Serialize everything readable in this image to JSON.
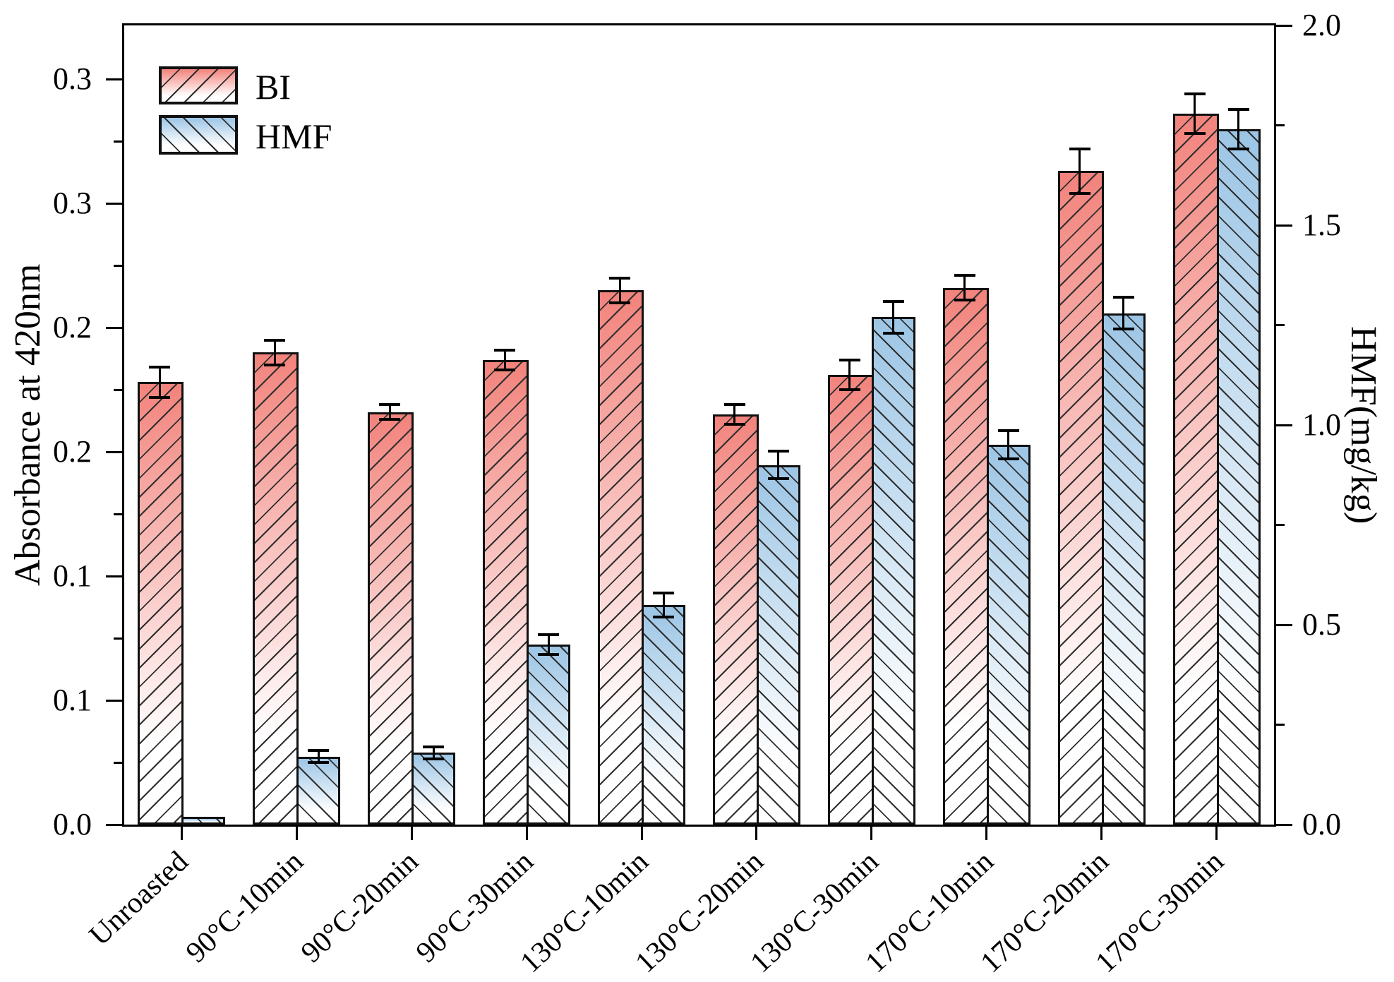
{
  "colors": {
    "bi_fill": "#f2837c",
    "hmf_fill": "#9cc5e5",
    "hatch": "#2e2e2e",
    "axis": "#000000",
    "background": "#ffffff"
  },
  "legend": {
    "bi_label": "BI",
    "hmf_label": "HMF"
  },
  "chart_data": {
    "type": "bar",
    "title": "",
    "categories": [
      "Unroasted",
      "90°C-10min",
      "90°C-20min",
      "90°C-30min",
      "130°C-10min",
      "130°C-20min",
      "130°C-30min",
      "170°C-10min",
      "170°C-20min",
      "170°C-30min"
    ],
    "series": [
      {
        "name": "BI",
        "axis": "left",
        "color": "#f2837c",
        "hatch": "/",
        "values": [
          0.178,
          0.19,
          0.166,
          0.187,
          0.215,
          0.165,
          0.181,
          0.216,
          0.263,
          0.286
        ],
        "errors": [
          0.006,
          0.005,
          0.003,
          0.004,
          0.005,
          0.004,
          0.006,
          0.005,
          0.009,
          0.008
        ]
      },
      {
        "name": "HMF",
        "axis": "right",
        "color": "#9cc5e5",
        "hatch": "\\",
        "values": [
          0.02,
          0.17,
          0.18,
          0.45,
          0.55,
          0.9,
          1.27,
          0.95,
          1.28,
          1.74
        ],
        "errors": [
          0,
          0.015,
          0.015,
          0.025,
          0.03,
          0.035,
          0.04,
          0.035,
          0.04,
          0.05
        ]
      }
    ],
    "left_axis": {
      "label": "Absorbance at 420nm",
      "range": [
        0,
        0.3216
      ],
      "major_ticks": [
        {
          "v": 0.3,
          "label": "0.3"
        },
        {
          "v": 0.25,
          "label": "0.3"
        },
        {
          "v": 0.2,
          "label": "0.2"
        },
        {
          "v": 0.15,
          "label": "0.2"
        },
        {
          "v": 0.1,
          "label": "0.1"
        },
        {
          "v": 0.05,
          "label": "0.1"
        },
        {
          "v": 0.0,
          "label": "0.0"
        }
      ],
      "minor_ticks": [
        0.275,
        0.225,
        0.175,
        0.125,
        0.075,
        0.025
      ]
    },
    "right_axis": {
      "label": "HMF(mg/kg)",
      "range": [
        0,
        2.0
      ],
      "major_ticks": [
        {
          "v": 2.0,
          "label": "2.0"
        },
        {
          "v": 1.5,
          "label": "1.5"
        },
        {
          "v": 1.0,
          "label": "1.0"
        },
        {
          "v": 0.5,
          "label": "0.5"
        },
        {
          "v": 0.0,
          "label": "0.0"
        }
      ],
      "minor_ticks": [
        1.75,
        1.25,
        0.75,
        0.25
      ]
    },
    "grid": false,
    "legend_position": "upper-left",
    "error_bars": true
  }
}
